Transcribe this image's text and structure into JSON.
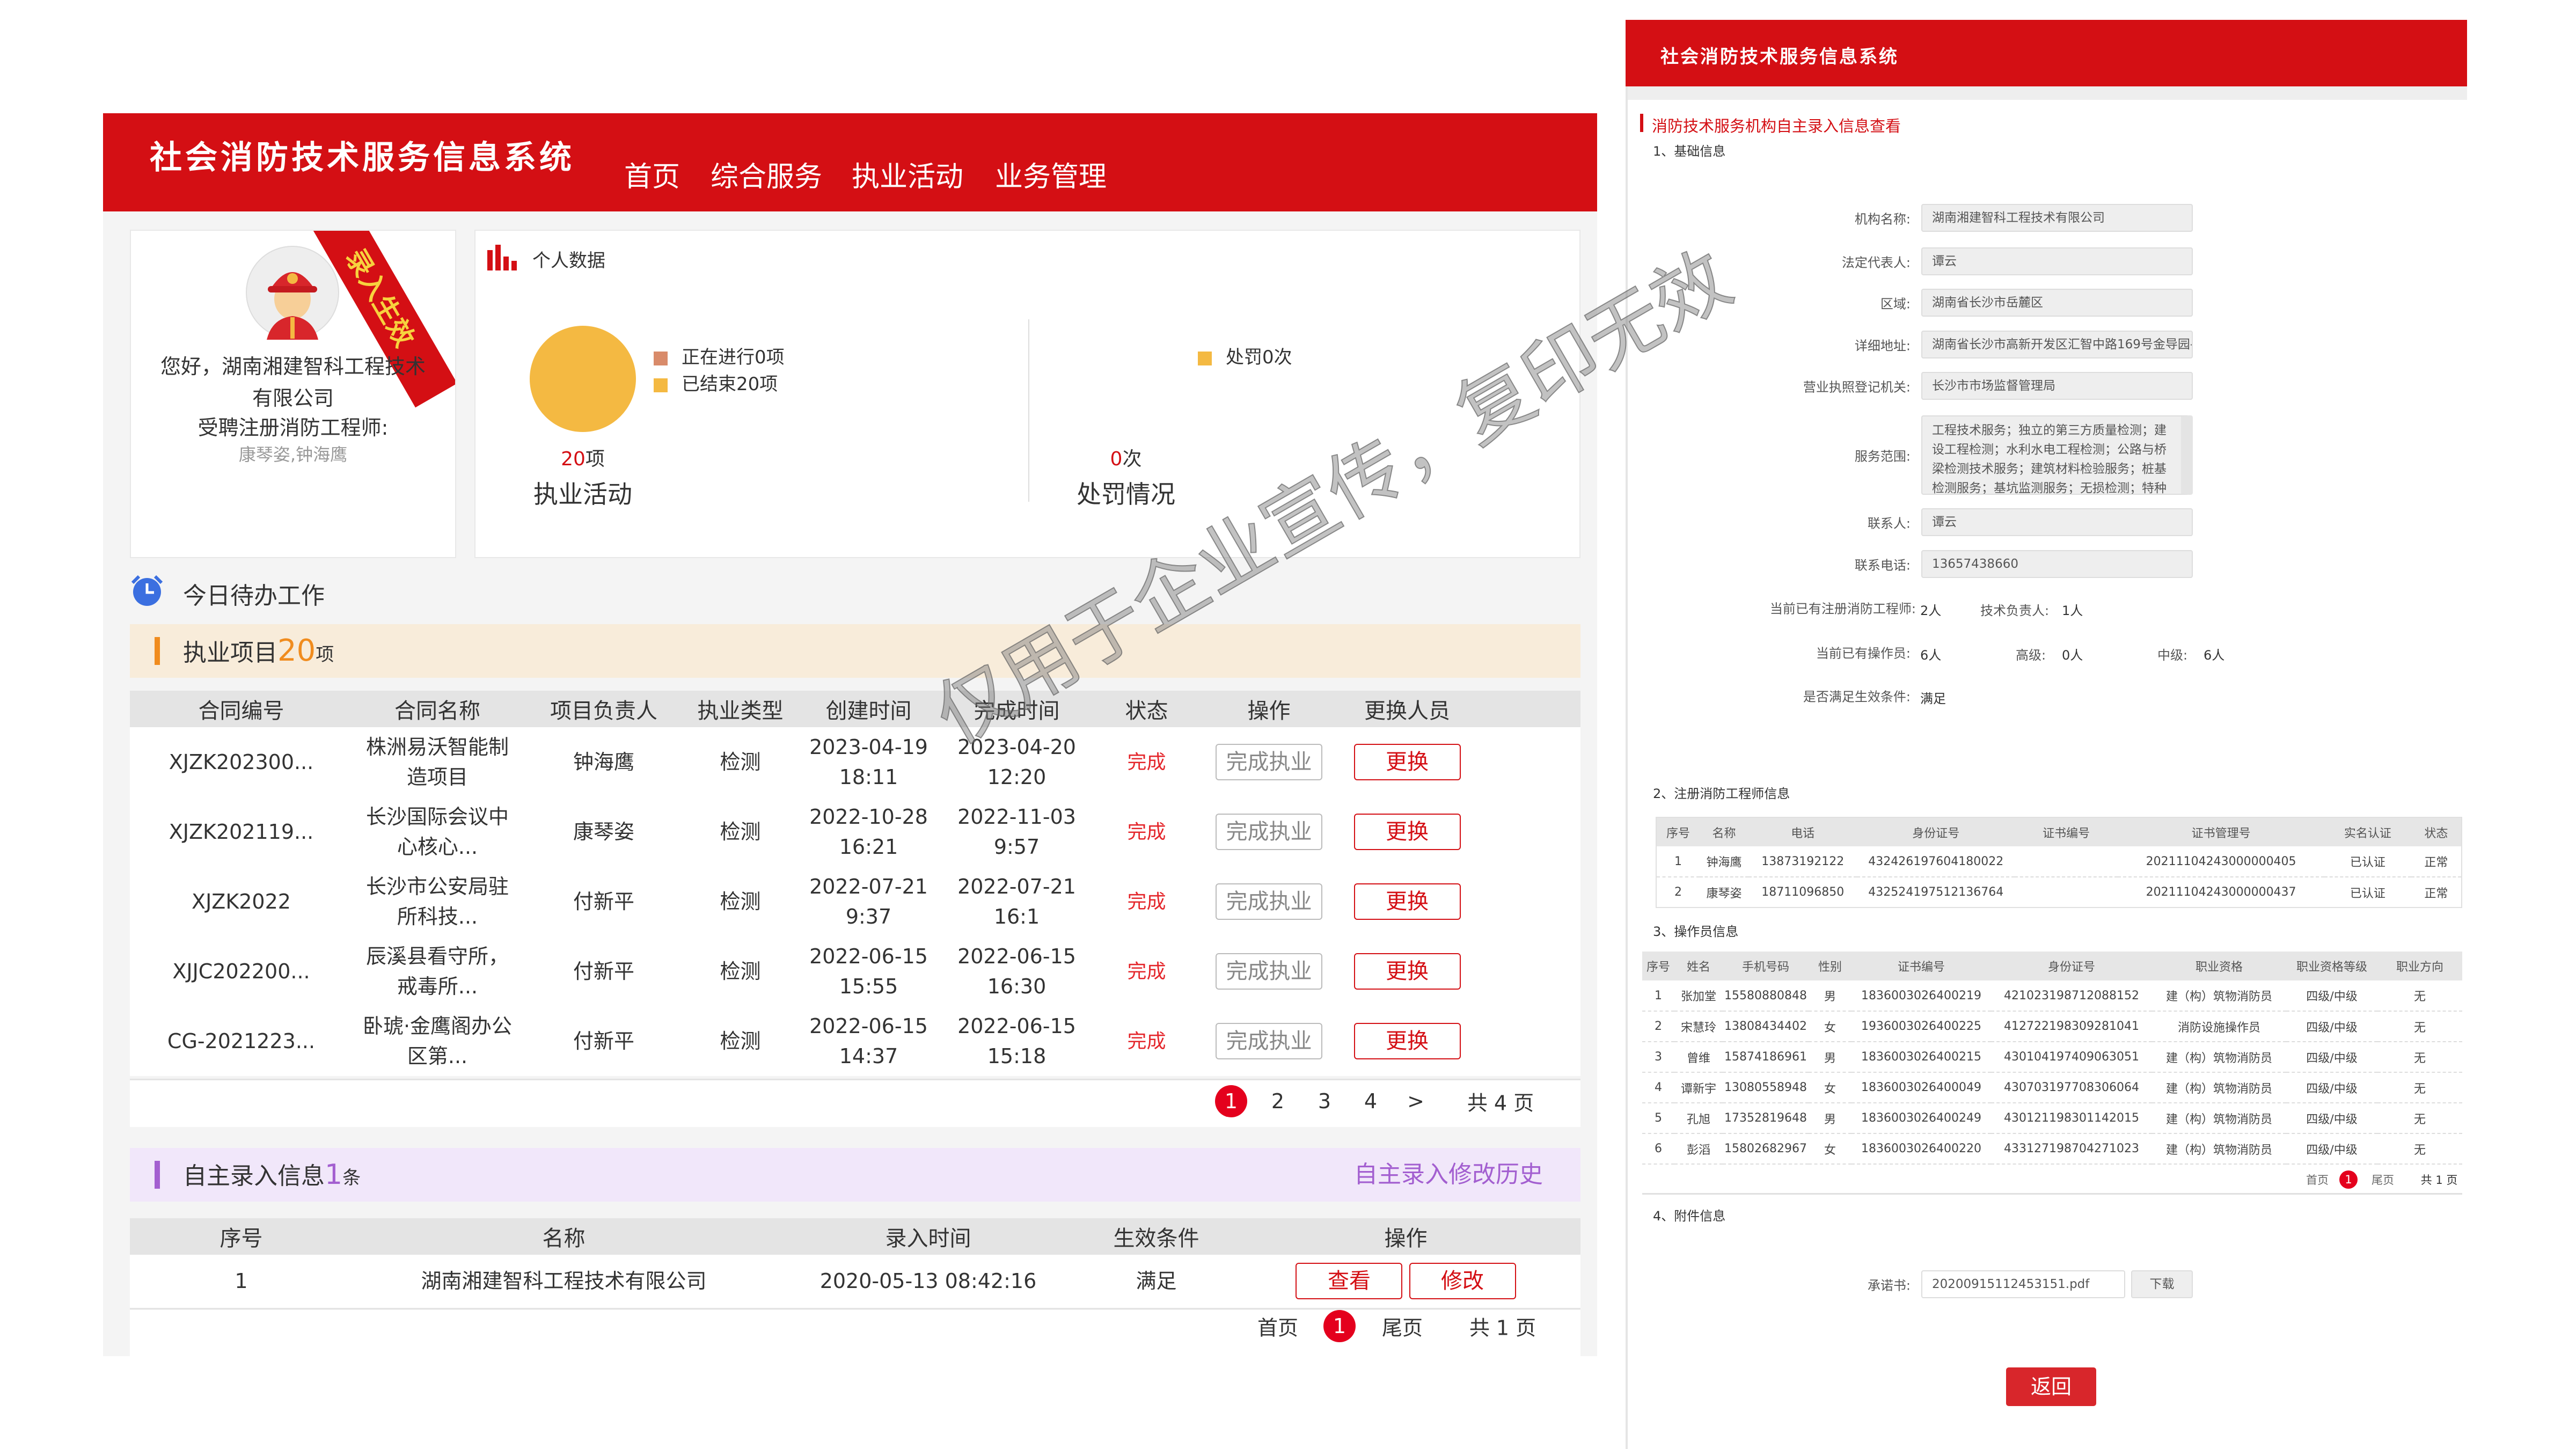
{
  "app_title": "社会消防技术服务信息系统",
  "nav": [
    "首页",
    "综合服务",
    "执业活动",
    "业务管理"
  ],
  "profile": {
    "ribbon": "录入生效",
    "greeting_line1": "您好，湖南湘建智科工程技术",
    "greeting_line2": "有限公司",
    "engineers_label": "受聘注册消防工程师:",
    "engineers": "康琴姿,钟海鹰"
  },
  "stats": {
    "title": "个人数据",
    "activity": {
      "legend": [
        "正在进行0项",
        "已结束20项"
      ],
      "legend_colors": [
        "#d98b6a",
        "#f4b942"
      ],
      "count": "20",
      "unit": "项",
      "label": "执业活动",
      "in_progress": 0,
      "finished": 20
    },
    "penalty": {
      "legend": [
        "处罚0次"
      ],
      "count": "0",
      "unit": "次",
      "label": "处罚情况"
    }
  },
  "todo": {
    "title": "今日待办工作"
  },
  "projects": {
    "title": "执业项目",
    "count": "20",
    "unit": "项",
    "columns": [
      "合同编号",
      "合同名称",
      "项目负责人",
      "执业类型",
      "创建时间",
      "完成时间",
      "状态",
      "操作",
      "更换人员"
    ],
    "rows": [
      {
        "id": "XJZK202300...",
        "name": "株洲易沃智能制造项目",
        "lead": "钟海鹰",
        "type": "检测",
        "created": [
          "2023-04-19",
          "18:11"
        ],
        "finished": [
          "2023-04-20",
          "12:20"
        ],
        "status": "完成",
        "action": "完成执业",
        "change": "更换"
      },
      {
        "id": "XJZK202119...",
        "name": "长沙国际会议中心核心...",
        "lead": "康琴姿",
        "type": "检测",
        "created": [
          "2022-10-28",
          "16:21"
        ],
        "finished": [
          "2022-11-03",
          "9:57"
        ],
        "status": "完成",
        "action": "完成执业",
        "change": "更换"
      },
      {
        "id": "XJZK2022",
        "name": "长沙市公安局驻所科技...",
        "lead": "付新平",
        "type": "检测",
        "created": [
          "2022-07-21",
          "9:37"
        ],
        "finished": [
          "2022-07-21",
          "16:1"
        ],
        "status": "完成",
        "action": "完成执业",
        "change": "更换"
      },
      {
        "id": "XJJC202200...",
        "name": "辰溪县看守所，戒毒所...",
        "lead": "付新平",
        "type": "检测",
        "created": [
          "2022-06-15",
          "15:55"
        ],
        "finished": [
          "2022-06-15",
          "16:30"
        ],
        "status": "完成",
        "action": "完成执业",
        "change": "更换"
      },
      {
        "id": "CG-2021223...",
        "name": "卧琥·金鹰阁办公区第...",
        "lead": "付新平",
        "type": "检测",
        "created": [
          "2022-06-15",
          "14:37"
        ],
        "finished": [
          "2022-06-15",
          "15:18"
        ],
        "status": "完成",
        "action": "完成执业",
        "change": "更换"
      }
    ],
    "pagination": {
      "pages": [
        "1",
        "2",
        "3",
        "4"
      ],
      "next": ">",
      "total": "共 4 页"
    }
  },
  "self_entry": {
    "title": "自主录入信息",
    "count": "1",
    "unit": "条",
    "history_link": "自主录入修改历史",
    "columns": [
      "序号",
      "名称",
      "录入时间",
      "生效条件",
      "操作"
    ],
    "rows": [
      {
        "no": "1",
        "name": "湖南湘建智科工程技术有限公司",
        "time": "2020-05-13 08:42:16",
        "cond": "满足",
        "view": "查看",
        "edit": "修改"
      }
    ],
    "pagination": {
      "first": "首页",
      "current": "1",
      "last": "尾页",
      "total": "共 1 页"
    }
  },
  "watermark": "仅用于企业宣传，复印无效",
  "detail": {
    "app_title": "社会消防技术服务信息系统",
    "title": "消防技术服务机构自主录入信息查看",
    "s1": "1、基础信息",
    "fields": [
      {
        "label": "机构名称:",
        "value": "湖南湘建智科工程技术有限公司"
      },
      {
        "label": "法定代表人:",
        "value": "谭云"
      },
      {
        "label": "区域:",
        "value": "湖南省长沙市岳麓区"
      },
      {
        "label": "详细地址:",
        "value": "湖南省长沙市高新开发区汇智中路169号金导园-"
      },
      {
        "label": "营业执照登记机关:",
        "value": "长沙市市场监督管理局"
      },
      {
        "label": "服务范围:",
        "value": "工程技术服务；独立的第三方质量检测；建设工程检测；水利水电工程检测；公路与桥梁检测技术服务；建筑材料检验服务；桩基检测服务；基坑监测服务；无损检测；特种"
      },
      {
        "label": "联系人:",
        "value": "谭云"
      },
      {
        "label": "联系电话:",
        "value": "13657438660"
      }
    ],
    "engineers_count_label": "当前已有注册消防工程师:",
    "engineers_count": "2人",
    "tech_lead_label": "技术负责人:",
    "tech_lead": "1人",
    "operators_label": "当前已有操作员:",
    "operators": "6人",
    "senior_label": "高级:",
    "senior": "0人",
    "mid_label": "中级:",
    "mid": "6人",
    "effective_label": "是否满足生效条件:",
    "effective": "满足",
    "s2": "2、注册消防工程师信息",
    "eng_columns": [
      "序号",
      "名称",
      "电话",
      "身份证号",
      "证书编号",
      "证书管理号",
      "实名认证",
      "状态"
    ],
    "eng_rows": [
      [
        "1",
        "钟海鹰",
        "13873192122",
        "432426197604180022",
        "",
        "20211104243000000405",
        "已认证",
        "正常"
      ],
      [
        "2",
        "康琴姿",
        "18711096850",
        "432524197512136764",
        "",
        "20211104243000000437",
        "已认证",
        "正常"
      ]
    ],
    "s3": "3、操作员信息",
    "op_columns": [
      "序号",
      "姓名",
      "手机号码",
      "性别",
      "证书编号",
      "身份证号",
      "职业资格",
      "职业资格等级",
      "职业方向"
    ],
    "op_rows": [
      [
        "1",
        "张加堂",
        "15580880848",
        "男",
        "1836003026400219",
        "421023198712088152",
        "建（构）筑物消防员",
        "四级/中级",
        "无"
      ],
      [
        "2",
        "宋慧玲",
        "13808434402",
        "女",
        "1936003026400225",
        "412722198309281041",
        "消防设施操作员",
        "四级/中级",
        "无"
      ],
      [
        "3",
        "曾维",
        "15874186961",
        "男",
        "1836003026400215",
        "430104197409063051",
        "建（构）筑物消防员",
        "四级/中级",
        "无"
      ],
      [
        "4",
        "谭新宇",
        "13080558948",
        "女",
        "1836003026400049",
        "430703197708306064",
        "建（构）筑物消防员",
        "四级/中级",
        "无"
      ],
      [
        "5",
        "孔旭",
        "17352819648",
        "男",
        "1836003026400249",
        "430121198301142015",
        "建（构）筑物消防员",
        "四级/中级",
        "无"
      ],
      [
        "6",
        "彭滔",
        "15802682967",
        "女",
        "1836003026400220",
        "433127198704271023",
        "建（构）筑物消防员",
        "四级/中级",
        "无"
      ]
    ],
    "op_pagination": {
      "first": "首页",
      "current": "1",
      "last": "尾页",
      "total": "共 1 页"
    },
    "s4": "4、附件信息",
    "attachment_label": "承诺书:",
    "attachment_file": "20200915112453151.pdf",
    "download": "下载",
    "back": "返回"
  },
  "colors": {
    "brand_red": "#d40f14",
    "accent_orange": "#f08c1e",
    "purple": "#a35fd0",
    "pie": "#f4b942"
  }
}
